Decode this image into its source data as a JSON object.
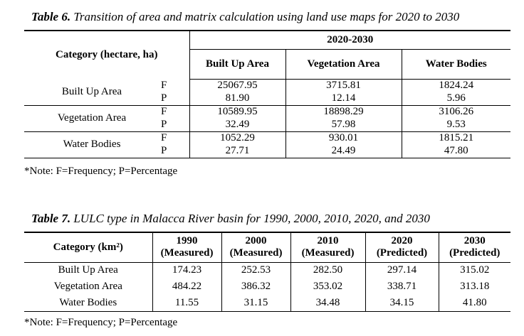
{
  "table6": {
    "caption_label": "Table 6.",
    "caption_text": " Transition of area and matrix calculation using land use maps for 2020 to 2030",
    "category_header": "Category (hectare, ha)",
    "period_header": "2020-2030",
    "columns": [
      "Built Up Area",
      "Vegetation Area",
      "Water Bodies"
    ],
    "rows": [
      {
        "name": "Built Up Area",
        "F": [
          "25067.95",
          "3715.81",
          "1824.24"
        ],
        "P": [
          "81.90",
          "12.14",
          "5.96"
        ]
      },
      {
        "name": "Vegetation Area",
        "F": [
          "10589.95",
          "18898.29",
          "3106.26"
        ],
        "P": [
          "32.49",
          "57.98",
          "9.53"
        ]
      },
      {
        "name": "Water Bodies",
        "F": [
          "1052.29",
          "930.01",
          "1815.21"
        ],
        "P": [
          "27.71",
          "24.49",
          "47.80"
        ]
      }
    ],
    "f_label": "F",
    "p_label": "P",
    "note": "*Note: F=Frequency; P=Percentage"
  },
  "table7": {
    "caption_label": "Table 7.",
    "caption_text": " LULC type in Malacca River basin for 1990, 2000, 2010, 2020, and 2030",
    "category_header": "Category (km²)",
    "columns": [
      {
        "year": "1990",
        "kind": "(Measured)"
      },
      {
        "year": "2000",
        "kind": "(Measured)"
      },
      {
        "year": "2010",
        "kind": "(Measured)"
      },
      {
        "year": "2020",
        "kind": "(Predicted)"
      },
      {
        "year": "2030",
        "kind": "(Predicted)"
      }
    ],
    "rows": [
      {
        "name": "Built Up Area",
        "values": [
          "174.23",
          "252.53",
          "282.50",
          "297.14",
          "315.02"
        ]
      },
      {
        "name": "Vegetation Area",
        "values": [
          "484.22",
          "386.32",
          "353.02",
          "338.71",
          "313.18"
        ]
      },
      {
        "name": "Water Bodies",
        "values": [
          "11.55",
          "31.15",
          "34.48",
          "34.15",
          "41.80"
        ]
      }
    ],
    "note": "*Note: F=Frequency; P=Percentage"
  }
}
